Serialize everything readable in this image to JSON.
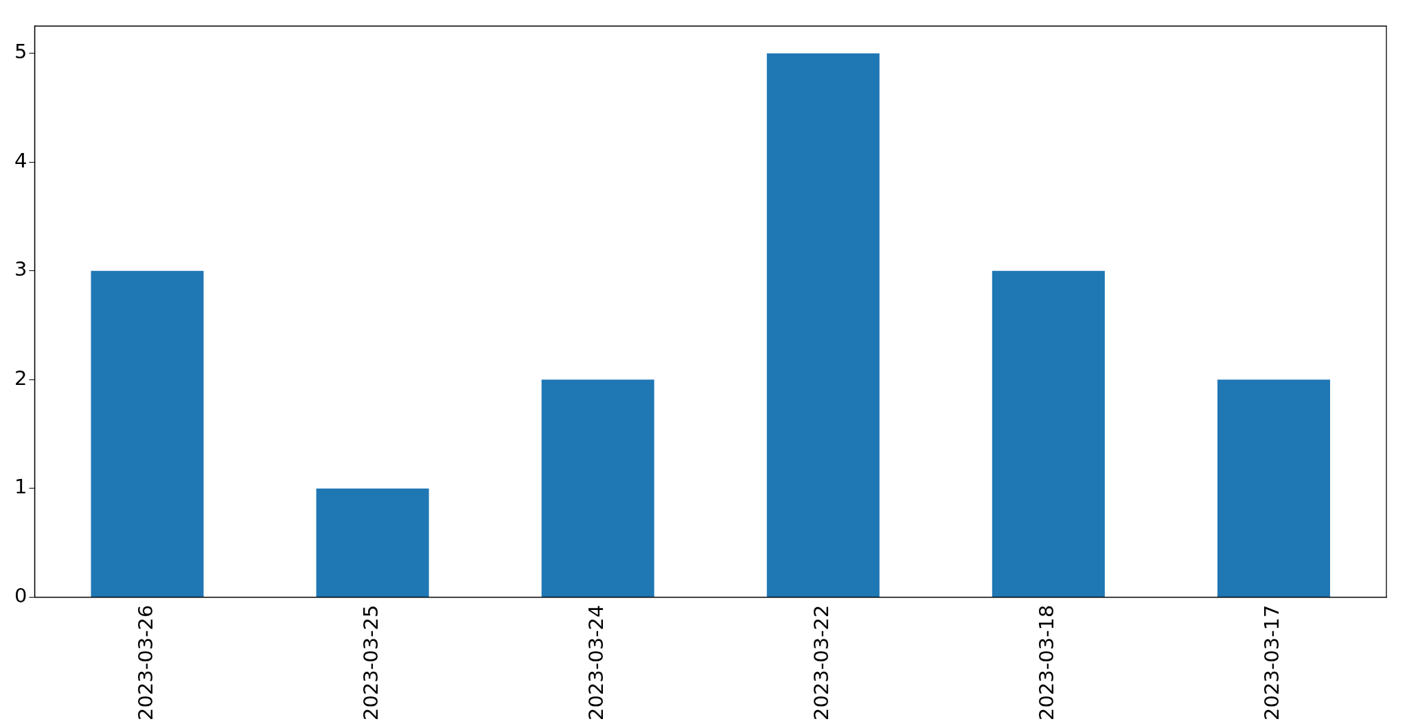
{
  "chart_data": {
    "type": "bar",
    "categories": [
      "2023-03-26",
      "2023-03-25",
      "2023-03-24",
      "2023-03-22",
      "2023-03-18",
      "2023-03-17"
    ],
    "values": [
      3,
      1,
      2,
      5,
      3,
      2
    ],
    "color": "#1f77b4",
    "ylim": [
      0,
      5.25
    ],
    "yticks": [
      0,
      1,
      2,
      3,
      4,
      5
    ],
    "grid": false,
    "legend": false
  }
}
